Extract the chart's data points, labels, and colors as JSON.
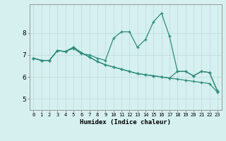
{
  "xlabel": "Humidex (Indice chaleur)",
  "background_color": "#d5f0ef",
  "grid_color_major": "#c0dede",
  "grid_color_minor": "#daeaea",
  "line_color": "#2e8b7a",
  "xlim": [
    -0.5,
    23.5
  ],
  "ylim": [
    4.5,
    9.3
  ],
  "yticks": [
    5,
    6,
    7,
    8
  ],
  "xticks": [
    0,
    1,
    2,
    3,
    4,
    5,
    6,
    7,
    8,
    9,
    10,
    11,
    12,
    13,
    14,
    15,
    16,
    17,
    18,
    19,
    20,
    21,
    22,
    23
  ],
  "series1": [
    6.85,
    6.75,
    6.75,
    7.2,
    7.15,
    7.3,
    7.05,
    7.0,
    6.85,
    6.75,
    7.75,
    8.05,
    8.05,
    7.35,
    7.7,
    8.5,
    8.9,
    7.85,
    6.25,
    6.25,
    6.05,
    6.25,
    6.2,
    5.35
  ],
  "series2": [
    6.85,
    6.75,
    6.75,
    7.2,
    7.15,
    7.35,
    7.1,
    6.9,
    6.7,
    6.55,
    6.45,
    6.35,
    6.25,
    6.15,
    6.1,
    6.05,
    6.0,
    5.95,
    5.9,
    5.85,
    5.8,
    5.75,
    5.7,
    5.3
  ],
  "series3": [
    6.85,
    6.75,
    6.75,
    7.2,
    7.15,
    7.35,
    7.1,
    6.9,
    6.7,
    6.55,
    6.45,
    6.35,
    6.25,
    6.15,
    6.1,
    6.05,
    6.0,
    5.95,
    6.25,
    6.25,
    6.05,
    6.25,
    6.2,
    5.35
  ]
}
